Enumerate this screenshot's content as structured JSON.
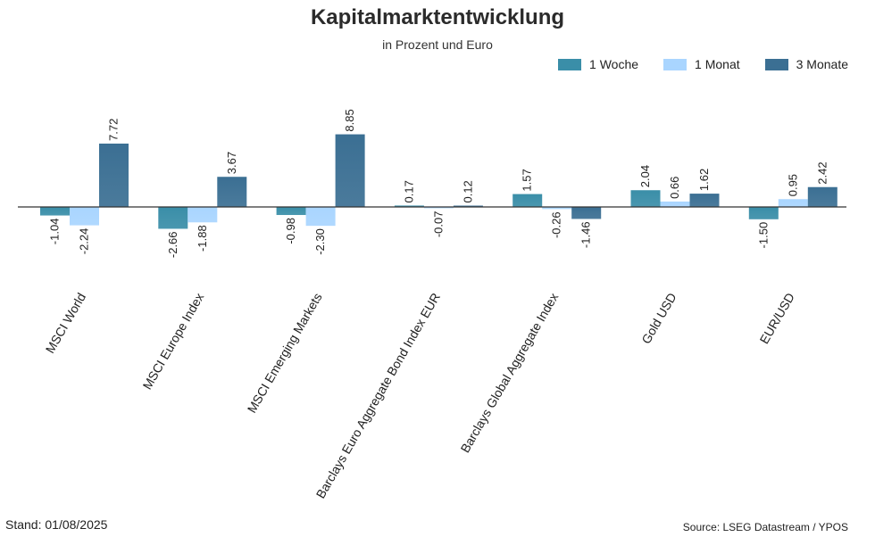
{
  "colors": {
    "series": [
      "#3a8ea8",
      "#a9d5ff",
      "#3b6f93"
    ],
    "axis": "#333333"
  },
  "chart_data": {
    "type": "bar",
    "title": "Kapitalmarktentwicklung",
    "subtitle": "in Prozent und Euro",
    "categories": [
      "MSCI World",
      "MSCI Europe Index",
      "MSCI Emerging Markets",
      "Barclays Euro Aggregate Bond Index EUR",
      "Barclays Global Aggregate Index",
      "Gold USD",
      "EUR/USD"
    ],
    "series": [
      {
        "name": "1 Woche",
        "values": [
          -1.04,
          -2.66,
          -0.98,
          0.17,
          1.57,
          2.04,
          -1.5
        ]
      },
      {
        "name": "1 Monat",
        "values": [
          -2.24,
          -1.88,
          -2.3,
          -0.07,
          -0.26,
          0.66,
          0.95
        ]
      },
      {
        "name": "3 Monate",
        "values": [
          7.72,
          3.67,
          8.85,
          0.12,
          -1.46,
          1.62,
          2.42
        ]
      }
    ],
    "value_labels": [
      [
        "-1.04",
        "-2.66",
        "-0.98",
        "0.17",
        "1.57",
        "2.04",
        "-1.50"
      ],
      [
        "-2.24",
        "-1.88",
        "-2.30",
        "-0.07",
        "-0.26",
        "0.66",
        "0.95"
      ],
      [
        "7.72",
        "3.67",
        "8.85",
        "0.12",
        "-1.46",
        "1.62",
        "2.42"
      ]
    ],
    "legend_position": "top-right",
    "grid": false
  },
  "footer": {
    "left": "Stand: 01/08/2025",
    "right": "Source: LSEG Datastream / YPOS"
  }
}
